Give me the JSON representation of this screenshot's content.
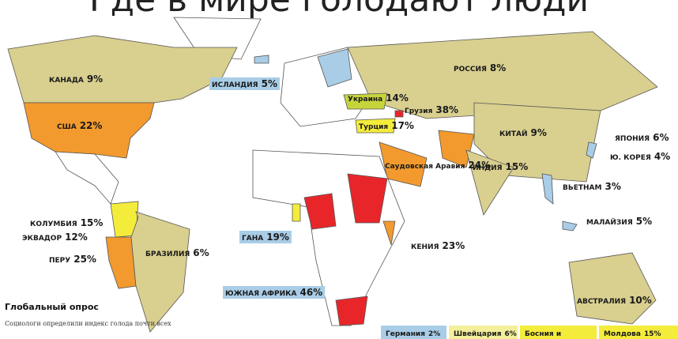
{
  "title": "Где в мире голодают люди",
  "labels": [
    {
      "name": "КАНАДА",
      "value": "9%"
    },
    {
      "name": "ИСЛАНДИЯ",
      "value": "5%"
    },
    {
      "name": "РОССИЯ",
      "value": "8%"
    },
    {
      "name": "США",
      "value": "22%"
    },
    {
      "name": "Украина",
      "value": "14%"
    },
    {
      "name": "Грузия",
      "value": "38%"
    },
    {
      "name": "Турция",
      "value": "17%"
    },
    {
      "name": "Саудовская Аравия",
      "value": "24%"
    },
    {
      "name": "КИТАЙ",
      "value": "9%"
    },
    {
      "name": "ЯПОНИЯ",
      "value": "6%"
    },
    {
      "name": "Ю. КОРЕЯ",
      "value": "4%"
    },
    {
      "name": "ИНДИЯ",
      "value": "15%"
    },
    {
      "name": "ВЬЕТНАМ",
      "value": "3%"
    },
    {
      "name": "МАЛАЙЗИЯ",
      "value": "5%"
    },
    {
      "name": "КОЛУМБИЯ",
      "value": "15%"
    },
    {
      "name": "ЭКВАДОР",
      "value": "12%"
    },
    {
      "name": "ПЕРУ",
      "value": "25%"
    },
    {
      "name": "БРАЗИЛИЯ",
      "value": "6%"
    },
    {
      "name": "ГАНА",
      "value": "19%"
    },
    {
      "name": "КЕНИЯ",
      "value": "23%"
    },
    {
      "name": "ЮЖНАЯ АФРИКА",
      "value": "46%"
    },
    {
      "name": "АВСТРАЛИЯ",
      "value": "10%"
    }
  ],
  "legend_boxes": [
    {
      "name": "Германия",
      "value": "2%"
    },
    {
      "name": "Швейцария",
      "value": "6%"
    },
    {
      "name": "Босния и",
      "value": ""
    },
    {
      "name": "Молдова",
      "value": "15%"
    }
  ],
  "sidebar": {
    "heading": "Глобальный опрос",
    "text": "Социологи определили индекс голода почти всех"
  }
}
